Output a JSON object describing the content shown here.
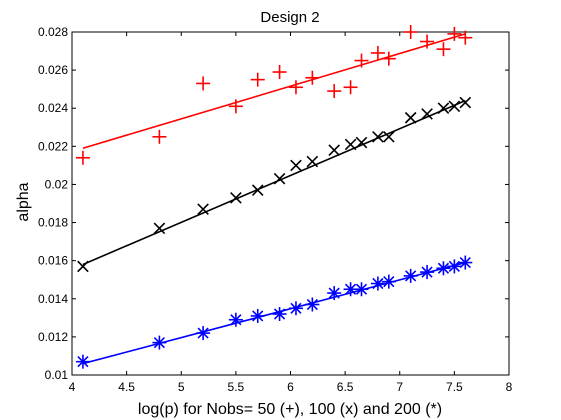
{
  "chart_data": {
    "type": "scatter",
    "title": "Design 2",
    "xlabel": "log(p) for Nobs= 50 (+), 100 (x) and 200 (*)",
    "ylabel": "alpha",
    "xlim": [
      4,
      8
    ],
    "ylim": [
      0.01,
      0.028
    ],
    "xticks": [
      "4",
      "4.5",
      "5",
      "5.5",
      "6",
      "6.5",
      "7",
      "7.5",
      "8"
    ],
    "yticks": [
      "0.01",
      "0.012",
      "0.014",
      "0.016",
      "0.018",
      "0.02",
      "0.022",
      "0.024",
      "0.026",
      "0.028"
    ],
    "grid": false,
    "series": [
      {
        "marker": "+",
        "color": "#ff0000",
        "x": [
          4.1,
          4.8,
          5.2,
          5.5,
          5.7,
          5.9,
          6.05,
          6.2,
          6.4,
          6.55,
          6.65,
          6.8,
          6.9,
          7.1,
          7.25,
          7.4,
          7.5,
          7.6
        ],
        "y": [
          0.0214,
          0.0225,
          0.0253,
          0.0241,
          0.0255,
          0.0259,
          0.0251,
          0.0256,
          0.0249,
          0.0251,
          0.0265,
          0.0269,
          0.0266,
          0.028,
          0.0275,
          0.0271,
          0.0279,
          0.0277
        ],
        "fit": [
          [
            4.1,
            0.0219
          ],
          [
            7.6,
            0.0279
          ]
        ]
      },
      {
        "marker": "x",
        "color": "#000000",
        "x": [
          4.1,
          4.8,
          5.2,
          5.5,
          5.7,
          5.9,
          6.05,
          6.2,
          6.4,
          6.55,
          6.65,
          6.8,
          6.9,
          7.1,
          7.25,
          7.4,
          7.5,
          7.6
        ],
        "y": [
          0.0157,
          0.0177,
          0.0187,
          0.0193,
          0.0197,
          0.0203,
          0.021,
          0.0212,
          0.0218,
          0.0221,
          0.0222,
          0.0225,
          0.0225,
          0.0235,
          0.0237,
          0.024,
          0.0241,
          0.0243
        ],
        "fit": [
          [
            4.1,
            0.0158
          ],
          [
            7.6,
            0.0244
          ]
        ]
      },
      {
        "marker": "*",
        "color": "#0000ff",
        "x": [
          4.1,
          4.8,
          5.2,
          5.5,
          5.7,
          5.9,
          6.05,
          6.2,
          6.4,
          6.55,
          6.65,
          6.8,
          6.9,
          7.1,
          7.25,
          7.4,
          7.5,
          7.6
        ],
        "y": [
          0.0107,
          0.0117,
          0.0122,
          0.0129,
          0.0131,
          0.0132,
          0.0135,
          0.0137,
          0.0143,
          0.0145,
          0.0145,
          0.0148,
          0.0149,
          0.0152,
          0.0154,
          0.0156,
          0.0157,
          0.0159
        ],
        "fit": [
          [
            4.1,
            0.0106
          ],
          [
            7.6,
            0.0159
          ]
        ]
      }
    ]
  }
}
